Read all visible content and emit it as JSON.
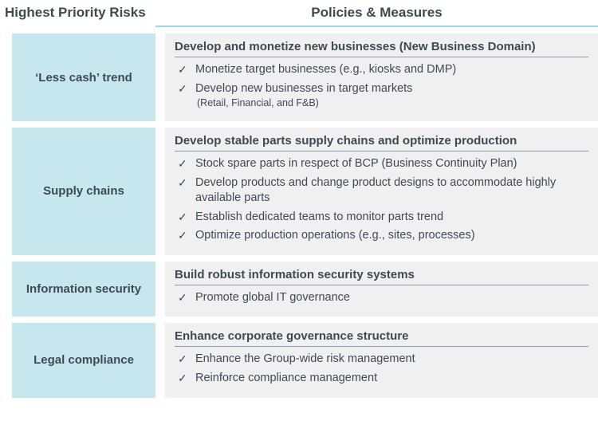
{
  "colors": {
    "risk_box_bg": "#c6e7ee",
    "policy_box_bg": "#f0f0f0",
    "header_rule": "#9fd4e0",
    "policy_title_rule": "#8aa0a8",
    "text": "#3e4a52",
    "page_bg": "#ffffff"
  },
  "headers": {
    "left": "Highest Priority Risks",
    "right": "Policies & Measures"
  },
  "rows": [
    {
      "risk": "‘Less cash’ trend",
      "policy_title": "Develop and monetize new businesses (New Business Domain)",
      "items": [
        {
          "text": "Monetize target businesses (e.g., kiosks and DMP)"
        },
        {
          "text": "Develop new businesses in target markets",
          "sub": "(Retail, Financial, and F&B)"
        }
      ]
    },
    {
      "risk": "Supply chains",
      "policy_title": "Develop stable parts supply chains and optimize production",
      "items": [
        {
          "text": "Stock spare parts in respect of BCP (Business Continuity Plan)"
        },
        {
          "text": "Develop products and change product designs to accommodate highly available parts"
        },
        {
          "text": "Establish dedicated teams to monitor parts trend"
        },
        {
          "text": "Optimize production operations (e.g., sites, processes)"
        }
      ]
    },
    {
      "risk": "Information security",
      "policy_title": "Build robust information security systems",
      "items": [
        {
          "text": "Promote global IT governance"
        }
      ]
    },
    {
      "risk": "Legal compliance",
      "policy_title": "Enhance corporate governance structure",
      "items": [
        {
          "text": "Enhance the Group-wide risk management"
        },
        {
          "text": "Reinforce compliance management"
        }
      ]
    }
  ]
}
